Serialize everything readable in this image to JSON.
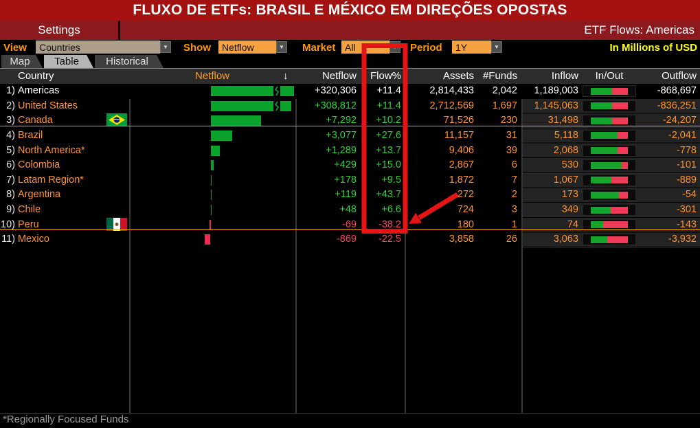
{
  "banner": {
    "title": "FLUXO DE ETFs: BRASIL E MÉXICO EM DIREÇÕES OPOSTAS"
  },
  "titlebar": {
    "settings": "Settings",
    "app_title": "ETF Flows: Americas"
  },
  "toolbar": {
    "view_label": "View",
    "view_value": "Countries",
    "show_label": "Show",
    "show_value": "Netflow",
    "market_label": "Market",
    "market_value": "All",
    "period_label": "Period",
    "period_value": "1Y",
    "dropdown_arrow": "▼",
    "units": "In Millions of USD"
  },
  "tabs": [
    {
      "label": "Map",
      "active": false
    },
    {
      "label": "Table",
      "active": true
    },
    {
      "label": "Historical",
      "active": false
    }
  ],
  "table": {
    "headers": {
      "country": "Country",
      "netflow_chart": "Netflow",
      "sort_icon": "↓",
      "netflow": "Netflow",
      "flowpct": "Flow%",
      "assets": "Assets",
      "funds": "#Funds",
      "inflow": "Inflow",
      "inout": "In/Out",
      "outflow": "Outflow"
    },
    "rows": [
      {
        "num": "1)",
        "name": "Americas",
        "flag": null,
        "netflow": "+320,306",
        "netflow_val": 320306,
        "flowpct": "+11.4",
        "assets": "2,814,433",
        "funds": "2,042",
        "inflow": "1,189,003",
        "inflow_val": 1189003,
        "outflow": "-868,697",
        "outflow_val": 868697,
        "total": true,
        "underline": false
      },
      {
        "num": "2)",
        "name": "United States",
        "flag": null,
        "netflow": "+308,812",
        "netflow_val": 308812,
        "flowpct": "+11.4",
        "assets": "2,712,569",
        "funds": "1,697",
        "inflow": "1,145,063",
        "inflow_val": 1145063,
        "outflow": "-836,251",
        "outflow_val": 836251,
        "total": false,
        "underline": false
      },
      {
        "num": "3)",
        "name": "Canada",
        "flag": "brazil",
        "netflow": "+7,292",
        "netflow_val": 7292,
        "flowpct": "+10.2",
        "assets": "71,526",
        "funds": "230",
        "inflow": "31,498",
        "inflow_val": 31498,
        "outflow": "-24,207",
        "outflow_val": 24207,
        "total": false,
        "underline": true
      },
      {
        "num": "4)",
        "name": "Brazil",
        "flag": null,
        "netflow": "+3,077",
        "netflow_val": 3077,
        "flowpct": "+27.6",
        "assets": "11,157",
        "funds": "31",
        "inflow": "5,118",
        "inflow_val": 5118,
        "outflow": "-2,041",
        "outflow_val": 2041,
        "total": false,
        "underline": false
      },
      {
        "num": "5)",
        "name": "North America*",
        "flag": null,
        "netflow": "+1,289",
        "netflow_val": 1289,
        "flowpct": "+13.7",
        "assets": "9,406",
        "funds": "39",
        "inflow": "2,068",
        "inflow_val": 2068,
        "outflow": "-778",
        "outflow_val": 778,
        "total": false,
        "underline": false
      },
      {
        "num": "6)",
        "name": "Colombia",
        "flag": null,
        "netflow": "+429",
        "netflow_val": 429,
        "flowpct": "+15.0",
        "assets": "2,867",
        "funds": "6",
        "inflow": "530",
        "inflow_val": 530,
        "outflow": "-101",
        "outflow_val": 101,
        "total": false,
        "underline": false
      },
      {
        "num": "7)",
        "name": "Latam Region*",
        "flag": null,
        "netflow": "+178",
        "netflow_val": 178,
        "flowpct": "+9.5",
        "assets": "1,872",
        "funds": "7",
        "inflow": "1,067",
        "inflow_val": 1067,
        "outflow": "-889",
        "outflow_val": 889,
        "total": false,
        "underline": false
      },
      {
        "num": "8)",
        "name": "Argentina",
        "flag": null,
        "netflow": "+119",
        "netflow_val": 119,
        "flowpct": "+43.7",
        "assets": "272",
        "funds": "2",
        "inflow": "173",
        "inflow_val": 173,
        "outflow": "-54",
        "outflow_val": 54,
        "total": false,
        "underline": false
      },
      {
        "num": "9)",
        "name": "Chile",
        "flag": null,
        "netflow": "+48",
        "netflow_val": 48,
        "flowpct": "+6.6",
        "assets": "724",
        "funds": "3",
        "inflow": "349",
        "inflow_val": 349,
        "outflow": "-301",
        "outflow_val": 301,
        "total": false,
        "underline": false
      },
      {
        "num": "10)",
        "name": "Peru",
        "flag": "mexico",
        "netflow": "-69",
        "netflow_val": -69,
        "flowpct": "-38.2",
        "assets": "180",
        "funds": "1",
        "inflow": "74",
        "inflow_val": 74,
        "outflow": "-143",
        "outflow_val": 143,
        "total": false,
        "underline": true
      },
      {
        "num": "11)",
        "name": "Mexico",
        "flag": null,
        "netflow": "-869",
        "netflow_val": -869,
        "flowpct": "-22.5",
        "assets": "3,858",
        "funds": "26",
        "inflow": "3,063",
        "inflow_val": 3063,
        "outflow": "-3,932",
        "outflow_val": 3932,
        "total": false,
        "underline": false
      }
    ]
  },
  "footnote": "*Regionally Focused Funds",
  "colors": {
    "banner_red": "#a31111",
    "titlebar_red": "#8c191d",
    "label_orange": "#ff9800",
    "data_orange": "#ff9430",
    "dropdown_orange": "#f6a241",
    "dropdown_tan": "#ac9e8a",
    "units_yellow": "#feff00",
    "value_green": "#2fd337",
    "value_red": "#f8445e",
    "bar_green": "#0aa32c",
    "bar_red": "#ef2950",
    "inout_green": "#16a52c",
    "inout_red": "#ef3b57",
    "cursor_underline_orange": "#ffaa00",
    "annotation_red": "#e51515"
  }
}
